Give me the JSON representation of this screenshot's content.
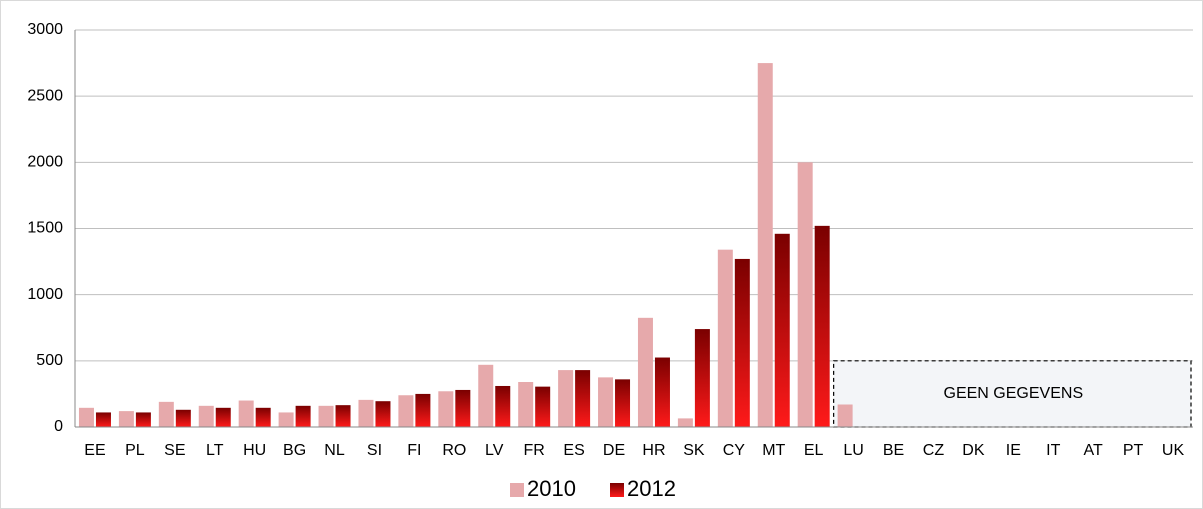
{
  "chart_data": {
    "type": "bar",
    "categories": [
      "EE",
      "PL",
      "SE",
      "LT",
      "HU",
      "BG",
      "NL",
      "SI",
      "FI",
      "RO",
      "LV",
      "FR",
      "ES",
      "DE",
      "HR",
      "SK",
      "CY",
      "MT",
      "EL",
      "LU",
      "BE",
      "CZ",
      "DK",
      "IE",
      "IT",
      "AT",
      "PT",
      "UK"
    ],
    "series": [
      {
        "name": "2010",
        "color": "#e6a9ab",
        "values": [
          145,
          120,
          190,
          160,
          200,
          110,
          160,
          205,
          240,
          270,
          470,
          340,
          430,
          375,
          825,
          65,
          1340,
          2750,
          2000,
          170,
          null,
          null,
          null,
          null,
          null,
          null,
          null,
          null
        ]
      },
      {
        "name": "2012",
        "color": "#c00000",
        "values": [
          110,
          110,
          130,
          145,
          145,
          160,
          165,
          195,
          250,
          280,
          310,
          305,
          430,
          360,
          525,
          740,
          1270,
          1460,
          1520,
          null,
          null,
          null,
          null,
          null,
          null,
          null,
          null,
          null
        ]
      }
    ],
    "ylim": [
      0,
      3000
    ],
    "yticks": [
      0,
      500,
      1000,
      1500,
      2000,
      2500,
      3000
    ],
    "grid": true,
    "legend": "bottom",
    "annotation": {
      "text": "GEEN GEGEVENS",
      "from": "LU",
      "to": "UK",
      "ylim": [
        0,
        500
      ]
    }
  }
}
